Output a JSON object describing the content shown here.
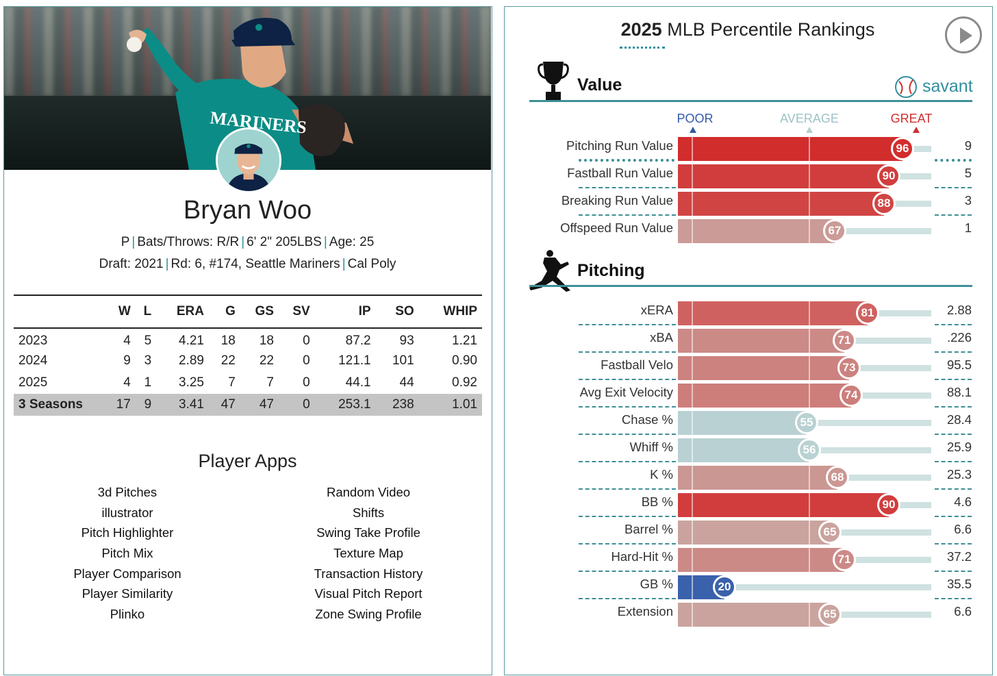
{
  "player": {
    "name": "Bryan Woo",
    "position": "P",
    "bats_throws": "Bats/Throws: R/R",
    "size": "6' 2\" 205LBS",
    "age": "Age: 25",
    "draft": "Draft: 2021",
    "round": "Rd: 6, #174, Seattle Mariners",
    "school": "Cal Poly",
    "jersey_text": "MARINERS"
  },
  "stats": {
    "headers": [
      "",
      "W",
      "L",
      "ERA",
      "G",
      "GS",
      "SV",
      "IP",
      "SO",
      "WHIP"
    ],
    "rows": [
      [
        "2023",
        "4",
        "5",
        "4.21",
        "18",
        "18",
        "0",
        "87.2",
        "93",
        "1.21"
      ],
      [
        "2024",
        "9",
        "3",
        "2.89",
        "22",
        "22",
        "0",
        "121.1",
        "101",
        "0.90"
      ],
      [
        "2025",
        "4",
        "1",
        "3.25",
        "7",
        "7",
        "0",
        "44.1",
        "44",
        "0.92"
      ]
    ],
    "total": [
      "3 Seasons",
      "17",
      "9",
      "3.41",
      "47",
      "47",
      "0",
      "253.1",
      "238",
      "1.01"
    ]
  },
  "apps": {
    "title": "Player Apps",
    "left": [
      "3d Pitches",
      "illustrator",
      "Pitch Highlighter",
      "Pitch Mix",
      "Player Comparison",
      "Player Similarity",
      "Plinko"
    ],
    "right": [
      "Random Video",
      "Shifts",
      "Swing Take Profile",
      "Texture Map",
      "Transaction History",
      "Visual Pitch Report",
      "Zone Swing Profile"
    ]
  },
  "rankings": {
    "title_year": "2025",
    "title_rest": " MLB Percentile Rankings",
    "brand": "savant",
    "scale": {
      "poor": "POOR",
      "average": "AVERAGE",
      "great": "GREAT"
    },
    "colors": {
      "great": "#d22d2d",
      "poor": "#325aa8",
      "neutral": "#b7cfd1",
      "accent": "#2f8f9d"
    },
    "icons": {
      "play": "play-icon",
      "trophy": "trophy-icon",
      "pitcher": "pitcher-icon",
      "savant": "baseball-icon"
    },
    "sections": [
      {
        "name": "Value",
        "metrics": [
          {
            "label": "Pitching Run Value",
            "percentile": 96,
            "value": "9"
          },
          {
            "label": "Fastball Run Value",
            "percentile": 90,
            "value": "5"
          },
          {
            "label": "Breaking Run Value",
            "percentile": 88,
            "value": "3"
          },
          {
            "label": "Offspeed Run Value",
            "percentile": 67,
            "value": "1"
          }
        ]
      },
      {
        "name": "Pitching",
        "metrics": [
          {
            "label": "xERA",
            "percentile": 81,
            "value": "2.88"
          },
          {
            "label": "xBA",
            "percentile": 71,
            "value": ".226"
          },
          {
            "label": "Fastball Velo",
            "percentile": 73,
            "value": "95.5"
          },
          {
            "label": "Avg Exit Velocity",
            "percentile": 74,
            "value": "88.1"
          },
          {
            "label": "Chase %",
            "percentile": 55,
            "value": "28.4"
          },
          {
            "label": "Whiff %",
            "percentile": 56,
            "value": "25.9"
          },
          {
            "label": "K %",
            "percentile": 68,
            "value": "25.3"
          },
          {
            "label": "BB %",
            "percentile": 90,
            "value": "4.6"
          },
          {
            "label": "Barrel %",
            "percentile": 65,
            "value": "6.6"
          },
          {
            "label": "Hard-Hit %",
            "percentile": 71,
            "value": "37.2"
          },
          {
            "label": "GB %",
            "percentile": 20,
            "value": "35.5"
          },
          {
            "label": "Extension",
            "percentile": 65,
            "value": "6.6"
          }
        ]
      }
    ]
  }
}
